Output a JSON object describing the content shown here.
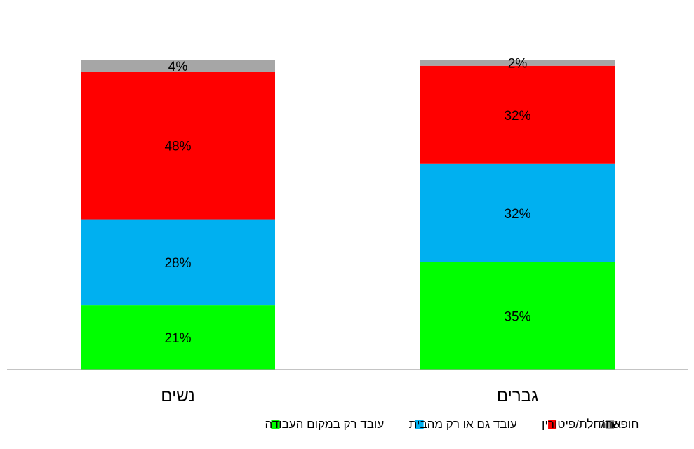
{
  "chart_data": {
    "type": "bar",
    "stacked": true,
    "percent_scale": true,
    "categories": [
      "נשים",
      "גברים"
    ],
    "series": [
      {
        "name": "עובד רק במקום העבודה",
        "color": "#00ff00",
        "values": [
          21,
          35
        ],
        "labels": [
          "21%",
          "35%"
        ]
      },
      {
        "name": "עובד גם או רק מהבית",
        "color": "#00b0f0",
        "values": [
          28,
          32
        ],
        "labels": [
          "28%",
          "32%"
        ]
      },
      {
        "name": "חופשה/חלת/פיטורין",
        "color": "#ff0000",
        "values": [
          48,
          32
        ],
        "labels": [
          "48%",
          "32%"
        ]
      },
      {
        "name": "אחר",
        "color": "#a6a6a6",
        "values": [
          4,
          2
        ],
        "labels": [
          "4%",
          "2%"
        ]
      }
    ],
    "title": "",
    "xlabel": "",
    "ylabel": "",
    "grid": false,
    "legend_position": "bottom"
  }
}
